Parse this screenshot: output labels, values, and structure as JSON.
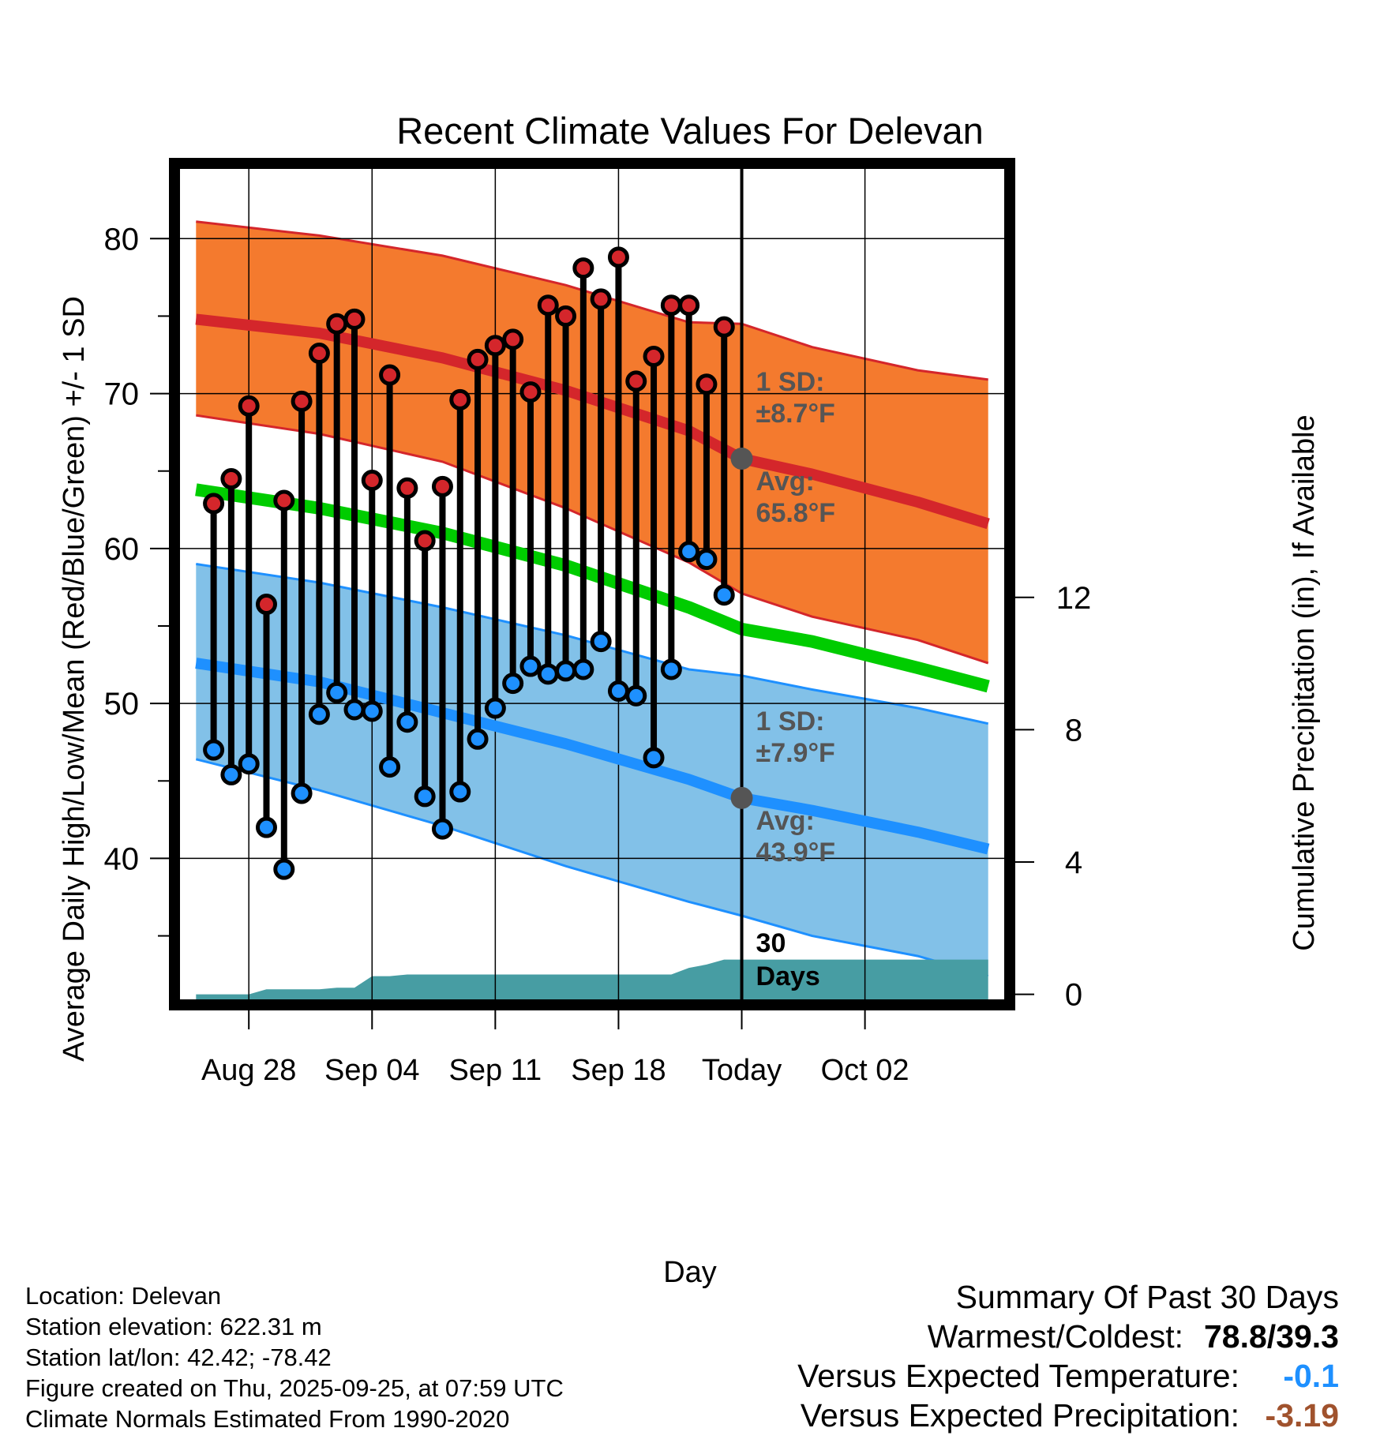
{
  "chart_data": {
    "type": "line",
    "title": "Recent Climate Values For Delevan",
    "xlabel": "Day",
    "ylabel": "Average Daily High/Low/Mean (Red/Blue/Green) +/- 1 SD",
    "y2label": "Cumulative Precipitation (in), If Available",
    "xlim": [
      -4,
      43
    ],
    "ylim": [
      30.8,
      84.6
    ],
    "y2lim": [
      -0.2,
      25
    ],
    "yticks": [
      40,
      50,
      60,
      70,
      80
    ],
    "y2ticks": [
      0,
      4,
      8,
      12
    ],
    "x_tick_positions": [
      0,
      7,
      14,
      21,
      28,
      35
    ],
    "x_tick_labels": [
      "Aug 28",
      "Sep 04",
      "Sep 11",
      "Sep 18",
      "Today",
      "Oct 02"
    ],
    "today_index": 28,
    "normals": {
      "x": [
        -3,
        4,
        11,
        18,
        25,
        28,
        32,
        38,
        42
      ],
      "high_avg": [
        74.8,
        73.9,
        72.3,
        70.2,
        67.6,
        65.8,
        64.8,
        63.0,
        61.6
      ],
      "high_sd_upper": [
        81.1,
        80.2,
        78.9,
        77.0,
        74.6,
        74.5,
        73.0,
        71.5,
        70.9
      ],
      "high_sd_lower": [
        68.6,
        67.4,
        65.6,
        62.6,
        59.1,
        57.1,
        55.6,
        54.1,
        52.6
      ],
      "mean": [
        63.8,
        62.6,
        61.0,
        58.9,
        56.2,
        54.8,
        54.0,
        52.3,
        51.1
      ],
      "low_avg": [
        52.6,
        51.4,
        49.4,
        47.4,
        45.1,
        43.9,
        43.1,
        41.7,
        40.6
      ],
      "low_sd_upper": [
        59.0,
        57.8,
        56.2,
        54.4,
        52.2,
        51.8,
        50.9,
        49.7,
        48.7
      ],
      "low_sd_lower": [
        46.4,
        44.4,
        42.1,
        39.5,
        37.2,
        36.3,
        35.0,
        33.7,
        32.4
      ]
    },
    "series": [
      {
        "name": "Daily High",
        "x": [
          -2,
          -1,
          0,
          1,
          2,
          3,
          4,
          5,
          6,
          7,
          8,
          9,
          10,
          11,
          12,
          13,
          14,
          15,
          16,
          17,
          18,
          19,
          20,
          21,
          22,
          23,
          24,
          25,
          26,
          27
        ],
        "values": [
          62.9,
          64.5,
          69.2,
          56.4,
          63.1,
          69.5,
          72.6,
          74.5,
          74.8,
          64.4,
          71.2,
          63.9,
          60.5,
          64.0,
          69.6,
          72.2,
          73.1,
          73.5,
          70.1,
          75.7,
          75.0,
          78.1,
          76.1,
          78.8,
          70.8,
          72.4,
          75.7,
          75.7,
          70.6,
          74.3
        ]
      },
      {
        "name": "Daily Low",
        "x": [
          -2,
          -1,
          0,
          1,
          2,
          3,
          4,
          5,
          6,
          7,
          8,
          9,
          10,
          11,
          12,
          13,
          14,
          15,
          16,
          17,
          18,
          19,
          20,
          21,
          22,
          23,
          24,
          25,
          26,
          27
        ],
        "values": [
          47.0,
          45.4,
          46.1,
          42.0,
          39.3,
          44.2,
          49.3,
          50.7,
          49.6,
          49.5,
          45.9,
          48.8,
          44.0,
          41.9,
          44.3,
          47.7,
          49.7,
          51.3,
          52.4,
          51.9,
          52.1,
          52.2,
          54.0,
          50.8,
          50.5,
          46.5,
          52.2,
          59.8,
          59.3,
          57.0
        ]
      },
      {
        "name": "Cumulative Precipitation (in)",
        "x": [
          -3,
          0,
          1,
          2,
          3,
          4,
          5,
          6,
          7,
          8,
          9,
          10,
          11,
          12,
          13,
          14,
          15,
          16,
          17,
          18,
          19,
          20,
          21,
          22,
          23,
          24,
          25,
          26,
          27,
          28,
          42
        ],
        "values": [
          0.0,
          0.0,
          0.15,
          0.15,
          0.15,
          0.15,
          0.2,
          0.2,
          0.55,
          0.55,
          0.6,
          0.6,
          0.6,
          0.6,
          0.6,
          0.6,
          0.6,
          0.6,
          0.6,
          0.6,
          0.6,
          0.6,
          0.6,
          0.6,
          0.6,
          0.6,
          0.8,
          0.9,
          1.05,
          1.05,
          1.05
        ]
      }
    ],
    "annotations": {
      "high_sd_label": "1 SD:",
      "high_sd_value": "±8.7°F",
      "high_avg_label": "Avg:",
      "high_avg_value": "65.8°F",
      "low_sd_label": "1 SD:",
      "low_sd_value": "±7.9°F",
      "low_avg_label": "Avg:",
      "low_avg_value": "43.9°F",
      "window_label_1": "30",
      "window_label_2": "Days"
    },
    "colors": {
      "high": "#d4262b",
      "high_band": "#f47a2e",
      "mean": "#00cc00",
      "low": "#1e90ff",
      "low_band": "#82c1e8",
      "precip": "#479da3",
      "marker_dark": "#555555"
    }
  },
  "info": {
    "location": "Location: Delevan",
    "elevation": "Station elevation: 622.31 m",
    "latlon": "Station lat/lon: 42.42; -78.42",
    "created": "Figure created on Thu, 2025-09-25, at 07:59 UTC",
    "normals": "Climate Normals Estimated From 1990-2020"
  },
  "summary": {
    "title": "Summary Of Past 30 Days",
    "warmest_label": "Warmest/Coldest:",
    "warmest_value": "78.8/39.3",
    "temp_label": "Versus Expected Temperature:",
    "temp_value": "-0.1",
    "temp_color": "#1e90ff",
    "precip_label": "Versus Expected Precipitation:",
    "precip_value": "-3.19",
    "precip_color": "#a0522d"
  }
}
